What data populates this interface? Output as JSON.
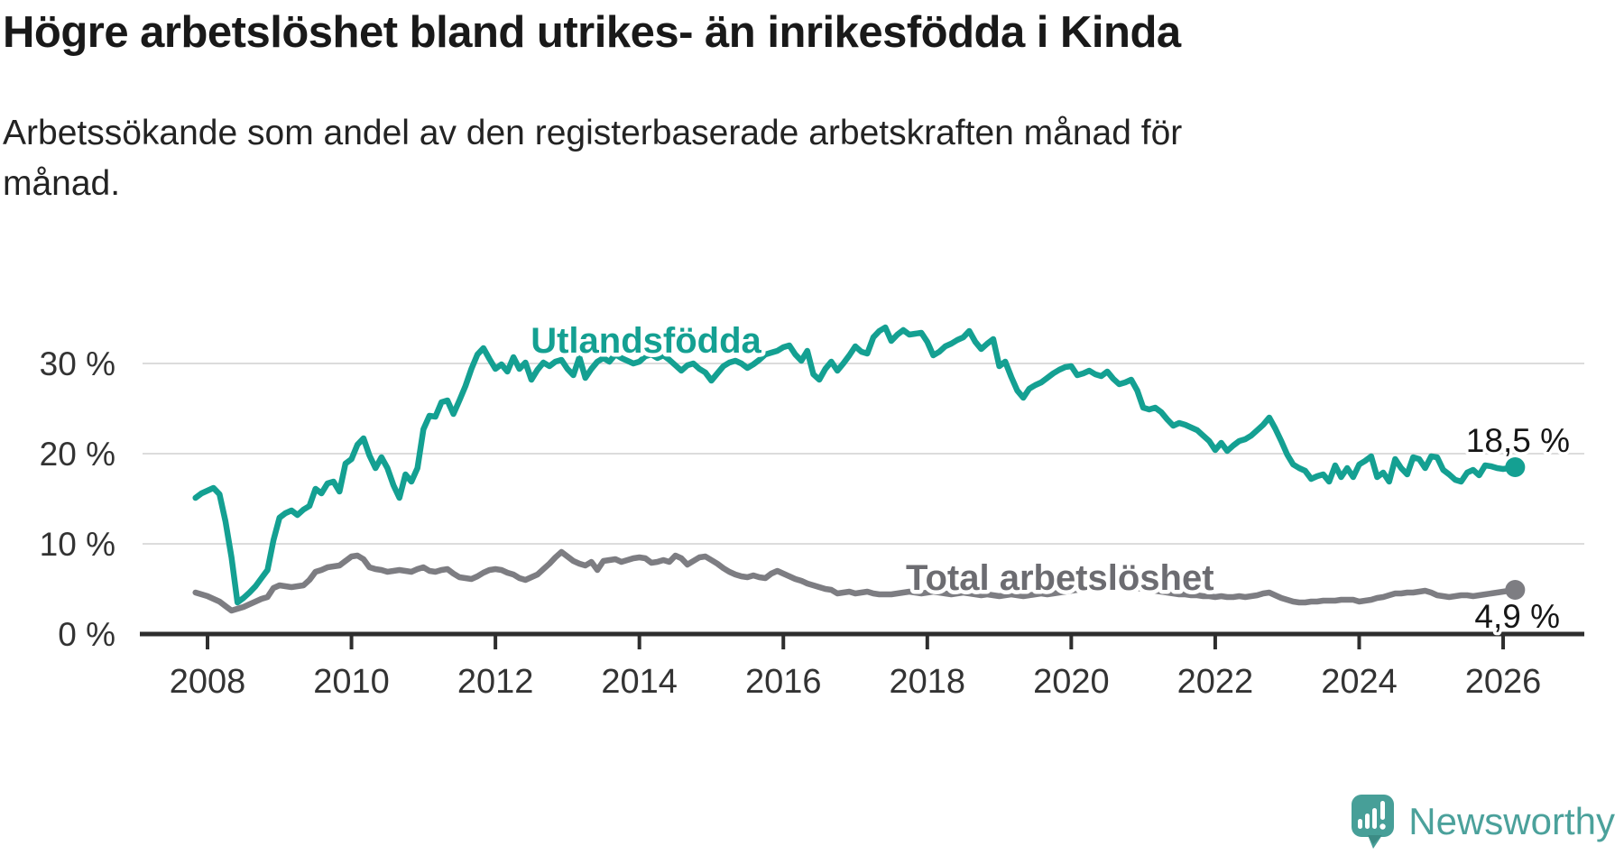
{
  "header": {
    "title": "Högre arbetslöshet bland utrikes- än inrikesfödda i Kinda",
    "subtitle": "Arbetssökande som andel av den registerbaserade arbetskraften månad för månad."
  },
  "footer": {
    "brand": "Newsworthy",
    "logo_icon": "bar-chart-speech-bubble-icon"
  },
  "colors": {
    "accent_teal": "#14a092",
    "gray_line": "#7d7d82",
    "gray_label": "#6c6c71",
    "grid": "#dcdcdc",
    "axis": "#2e2e2e",
    "tick_text": "#333333",
    "annotation_text": "#161616",
    "logo_teal": "#479f98"
  },
  "chart_data": {
    "type": "line",
    "unit": "%",
    "grid": "horizontal",
    "ylim": [
      0,
      35
    ],
    "x_ticks": [
      2008,
      2010,
      2012,
      2014,
      2016,
      2018,
      2020,
      2022,
      2024,
      2026
    ],
    "y_ticks": [
      {
        "value": 0,
        "label": "0 %"
      },
      {
        "value": 10,
        "label": "10 %"
      },
      {
        "value": 20,
        "label": "20 %"
      },
      {
        "value": 30,
        "label": "30 %"
      }
    ],
    "cadence": "monthly",
    "series": [
      {
        "name": "Utlandsfödda",
        "color": "#14a092",
        "start_year": 2007,
        "start_month": 11,
        "end_value": 18.5,
        "end_label": "18,5 %",
        "values": [
          15.1,
          15.6,
          15.9,
          16.2,
          15.5,
          12.5,
          8.5,
          3.5,
          4.0,
          4.6,
          5.3,
          6.2,
          7.1,
          10.4,
          12.9,
          13.4,
          13.7,
          13.2,
          13.8,
          14.2,
          16.1,
          15.6,
          16.7,
          16.9,
          15.8,
          18.9,
          19.4,
          21.0,
          21.7,
          19.8,
          18.4,
          19.6,
          18.4,
          16.5,
          15.1,
          17.7,
          16.9,
          18.4,
          22.7,
          24.2,
          24.1,
          25.7,
          25.9,
          24.4,
          25.9,
          27.5,
          29.4,
          31.0,
          31.7,
          30.5,
          29.4,
          29.9,
          29.1,
          30.7,
          29.4,
          30.1,
          28.2,
          29.3,
          30.1,
          29.7,
          30.2,
          30.4,
          29.4,
          28.7,
          30.7,
          28.4,
          29.4,
          30.2,
          30.6,
          30.2,
          31.0,
          30.6,
          30.3,
          30.0,
          30.2,
          30.8,
          31.0,
          30.6,
          30.9,
          30.4,
          29.8,
          29.2,
          29.8,
          30.0,
          29.4,
          29.0,
          28.1,
          28.9,
          29.7,
          30.1,
          30.3,
          30.0,
          29.5,
          29.9,
          30.4,
          31.0,
          31.2,
          31.4,
          31.8,
          32.0,
          31.0,
          30.3,
          31.4,
          28.8,
          28.2,
          29.4,
          30.2,
          29.2,
          30.0,
          30.9,
          31.9,
          31.3,
          31.1,
          32.9,
          33.6,
          34.0,
          32.5,
          33.2,
          33.7,
          33.2,
          33.3,
          33.4,
          32.4,
          30.9,
          31.3,
          31.9,
          32.2,
          32.6,
          32.9,
          33.6,
          32.4,
          31.6,
          32.2,
          32.7,
          29.7,
          30.2,
          28.5,
          27.0,
          26.2,
          27.2,
          27.6,
          27.9,
          28.4,
          28.9,
          29.3,
          29.6,
          29.7,
          28.7,
          28.9,
          29.2,
          28.8,
          28.6,
          29.1,
          28.3,
          27.7,
          27.9,
          28.2,
          27.0,
          25.1,
          24.9,
          25.1,
          24.6,
          23.8,
          23.1,
          23.4,
          23.2,
          22.9,
          22.6,
          22.0,
          21.4,
          20.4,
          21.2,
          20.3,
          20.9,
          21.4,
          21.6,
          22.0,
          22.6,
          23.2,
          24.0,
          22.8,
          21.4,
          19.9,
          18.8,
          18.4,
          18.1,
          17.2,
          17.5,
          17.7,
          16.9,
          18.7,
          17.4,
          18.4,
          17.4,
          18.8,
          19.2,
          19.7,
          17.4,
          17.9,
          16.9,
          19.4,
          18.4,
          17.7,
          19.6,
          19.4,
          18.4,
          19.7,
          19.6,
          18.2,
          17.7,
          17.1,
          16.9,
          17.9,
          18.2,
          17.6,
          18.7,
          18.6,
          18.4,
          18.3,
          18.4,
          18.5
        ]
      },
      {
        "name": "Total arbetslöshet",
        "color": "#7d7d82",
        "start_year": 2007,
        "start_month": 11,
        "end_value": 4.9,
        "end_label": "4,9 %",
        "values": [
          4.6,
          4.4,
          4.2,
          3.9,
          3.6,
          3.1,
          2.6,
          2.8,
          3.0,
          3.3,
          3.6,
          3.9,
          4.1,
          5.1,
          5.4,
          5.3,
          5.2,
          5.3,
          5.4,
          6.0,
          6.9,
          7.1,
          7.4,
          7.5,
          7.6,
          8.1,
          8.6,
          8.7,
          8.3,
          7.4,
          7.2,
          7.1,
          6.9,
          7.0,
          7.1,
          7.0,
          6.9,
          7.2,
          7.4,
          7.0,
          6.9,
          7.1,
          7.2,
          6.7,
          6.3,
          6.2,
          6.1,
          6.4,
          6.8,
          7.1,
          7.2,
          7.1,
          6.8,
          6.6,
          6.2,
          6.0,
          6.3,
          6.6,
          7.2,
          7.8,
          8.5,
          9.1,
          8.6,
          8.1,
          7.8,
          7.6,
          8.0,
          7.1,
          8.1,
          8.2,
          8.3,
          8.0,
          8.2,
          8.4,
          8.5,
          8.4,
          7.9,
          8.0,
          8.2,
          8.0,
          8.7,
          8.4,
          7.7,
          8.1,
          8.5,
          8.6,
          8.2,
          7.8,
          7.3,
          6.9,
          6.6,
          6.4,
          6.3,
          6.5,
          6.3,
          6.2,
          6.7,
          7.0,
          6.7,
          6.4,
          6.1,
          5.9,
          5.6,
          5.4,
          5.2,
          5.0,
          4.9,
          4.5,
          4.6,
          4.7,
          4.5,
          4.6,
          4.7,
          4.5,
          4.4,
          4.4,
          4.4,
          4.5,
          4.6,
          4.7,
          4.6,
          4.5,
          4.6,
          4.7,
          4.6,
          4.5,
          4.4,
          4.5,
          4.6,
          4.5,
          4.4,
          4.3,
          4.4,
          4.3,
          4.2,
          4.3,
          4.4,
          4.3,
          4.2,
          4.3,
          4.4,
          4.5,
          4.4,
          4.5,
          4.6,
          4.7,
          4.8,
          4.9,
          5.2,
          5.5,
          5.6,
          5.5,
          5.4,
          5.3,
          5.2,
          5.1,
          5.0,
          5.1,
          5.0,
          4.9,
          4.8,
          4.7,
          4.6,
          4.5,
          4.4,
          4.4,
          4.3,
          4.3,
          4.2,
          4.2,
          4.1,
          4.2,
          4.1,
          4.1,
          4.2,
          4.1,
          4.2,
          4.3,
          4.5,
          4.6,
          4.3,
          4.0,
          3.8,
          3.6,
          3.5,
          3.5,
          3.6,
          3.6,
          3.7,
          3.7,
          3.7,
          3.8,
          3.8,
          3.8,
          3.6,
          3.7,
          3.8,
          4.0,
          4.1,
          4.3,
          4.5,
          4.5,
          4.6,
          4.6,
          4.7,
          4.8,
          4.6,
          4.3,
          4.2,
          4.1,
          4.2,
          4.3,
          4.3,
          4.2,
          4.3,
          4.4,
          4.5,
          4.6,
          4.7,
          4.8,
          4.9
        ]
      }
    ]
  }
}
